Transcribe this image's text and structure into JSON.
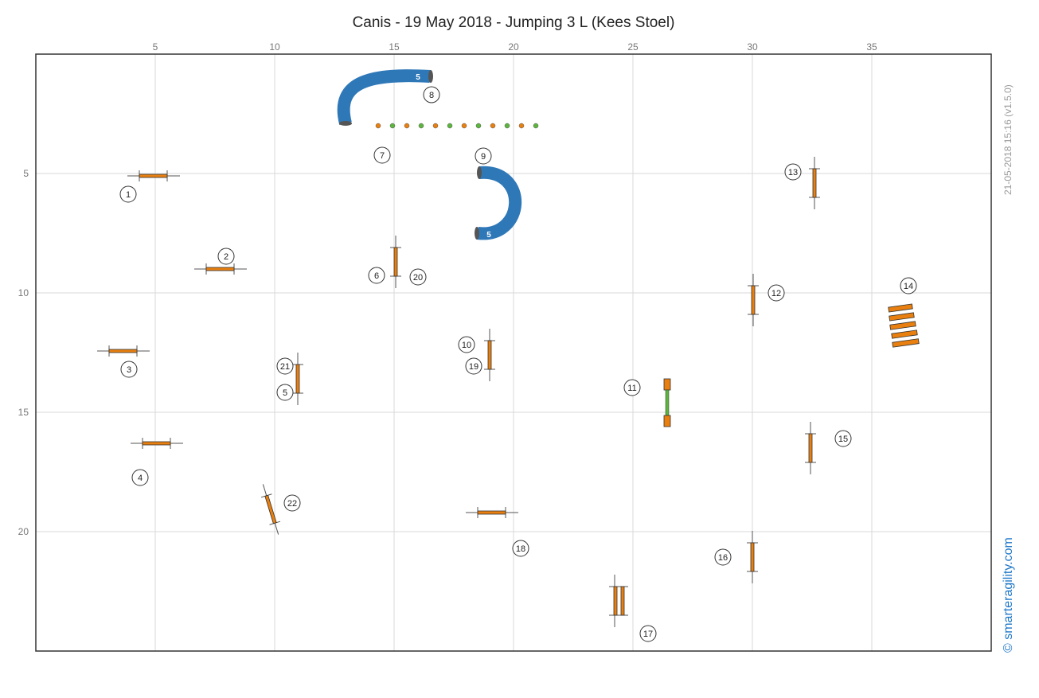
{
  "header": {
    "title": "Canis - 19 May 2018 - Jumping 3 L (Kees Stoel)"
  },
  "side": {
    "timestamp": "21-05-2018 15:16  (v1.5.0)",
    "brand": "© smarteragility.com"
  },
  "axes": {
    "x_ticks": [
      "5",
      "10",
      "15",
      "20",
      "25",
      "30",
      "35"
    ],
    "y_ticks": [
      "5",
      "10",
      "15",
      "20"
    ]
  },
  "colors": {
    "bar": "#e87f0f",
    "tunnel": "#2f78b8",
    "green": "#5cb53c",
    "grid": "#d9d9d9"
  },
  "tunnels": [
    {
      "label": "5"
    },
    {
      "label": "5"
    }
  ],
  "obstacle_numbers": [
    "1",
    "2",
    "3",
    "4",
    "5",
    "6",
    "7",
    "8",
    "9",
    "10",
    "11",
    "12",
    "13",
    "14",
    "15",
    "16",
    "17",
    "18",
    "19",
    "20",
    "21",
    "22"
  ]
}
